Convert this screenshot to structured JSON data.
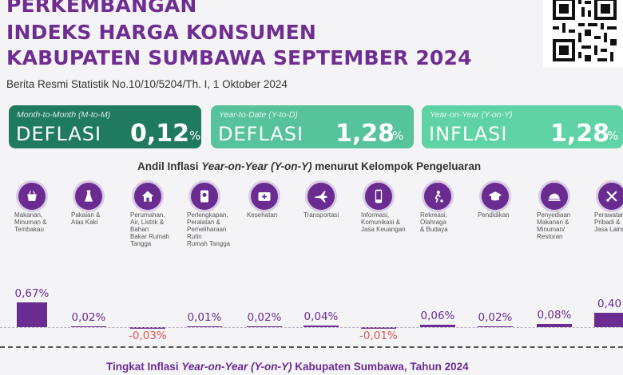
{
  "header": {
    "title_line1": "PERKEMBANGAN",
    "title_line2": "INDEKS HARGA KONSUMEN",
    "title_line3": "KABUPATEN SUMBAWA SEPTEMBER 2024",
    "subtitle": "Berita Resmi Statistik No.10/10/5204/Th. I, 1 Oktober 2024"
  },
  "cards": [
    {
      "caption": "Month-to-Month (M-to-M)",
      "kind": "DEFLASI",
      "value": "0,12",
      "unit": "%",
      "color": "#1f7a5e"
    },
    {
      "caption": "Year-to-Date (Y-to-D)",
      "kind": "DEFLASI",
      "value": "1,28",
      "unit": "%",
      "color": "#56c39c"
    },
    {
      "caption": "Year-on-Year (Y-on-Y)",
      "kind": "INFLASI",
      "value": "1,28",
      "unit": "%",
      "color": "#5fd3a6"
    }
  ],
  "colors": {
    "bar": "#6a2c91",
    "negative_label": "#e05555",
    "title": "#6f2d91"
  },
  "chart_heading": {
    "prefix": "Andil Inflasi ",
    "italic": "Year-on-Year (Y-on-Y)",
    "suffix": " menurut Kelompok Pengeluaran"
  },
  "chart_data": {
    "type": "bar",
    "title": "Andil Inflasi Year-on-Year (Y-on-Y) menurut Kelompok Pengeluaran",
    "unit": "%",
    "categories": [
      "Makanan, Minuman & Tembakau",
      "Pakaian & Alas Kaki",
      "Perumahan, Air, Listrik & Bahan Bakar Rumah Tangga",
      "Perlengkapan, Peralatan & Pemeliharaan Rutin Rumah Tangga",
      "Kesehatan",
      "Transportasi",
      "Informasi, Komunikasi & Jasa Keuangan",
      "Rekreasi, Olahraga & Budaya",
      "Pendidikan",
      "Penyediaan Makanan & Minuman/ Restoran",
      "Perawatan Pribadi & Jasa Lainnya"
    ],
    "values": [
      0.67,
      0.02,
      -0.03,
      0.01,
      0.02,
      0.04,
      -0.01,
      0.06,
      0.02,
      0.08,
      0.4
    ],
    "value_labels": [
      "0,67%",
      "0,02%",
      "-0,03%",
      "0,01%",
      "0,02%",
      "0,04%",
      "-0,01%",
      "0,06%",
      "0,02%",
      "0,08%",
      "0,40"
    ],
    "category_labels": [
      "Makanan,\nMinuman &\nTembakau",
      "Pakaian &\nAlas Kaki",
      "Perumahan,\nAir, Listrik &\nBahan\nBakar Rumah\nTangga",
      "Perlengkapan,\nPeralatan &\nPemeliharaan\nRutin\nRumah Tangga",
      "Kesehatan",
      "Transportasi",
      "Informasi,\nKomunikasi &\nJasa Keuangan",
      "Rekreasi,\nOlahraga\n& Budaya",
      "Pendidikan",
      "Penyediaan\nMakanan &\nMinuman/\nRestoran",
      "Perawatan\nPribadi &\nJasa Lainnya"
    ],
    "icons": [
      "groceries-icon",
      "dress-icon",
      "house-icon",
      "appliance-icon",
      "first-aid-icon",
      "airplane-icon",
      "smartphone-icon",
      "soccer-icon",
      "graduation-cap-icon",
      "restaurant-icon",
      "grooming-tools-icon"
    ]
  },
  "footer": {
    "prefix": "Tingkat Inflasi ",
    "italic": "Year-on-Year (Y-on-Y)",
    "suffix": " Kabupaten Sumbawa, Tahun 2024"
  }
}
